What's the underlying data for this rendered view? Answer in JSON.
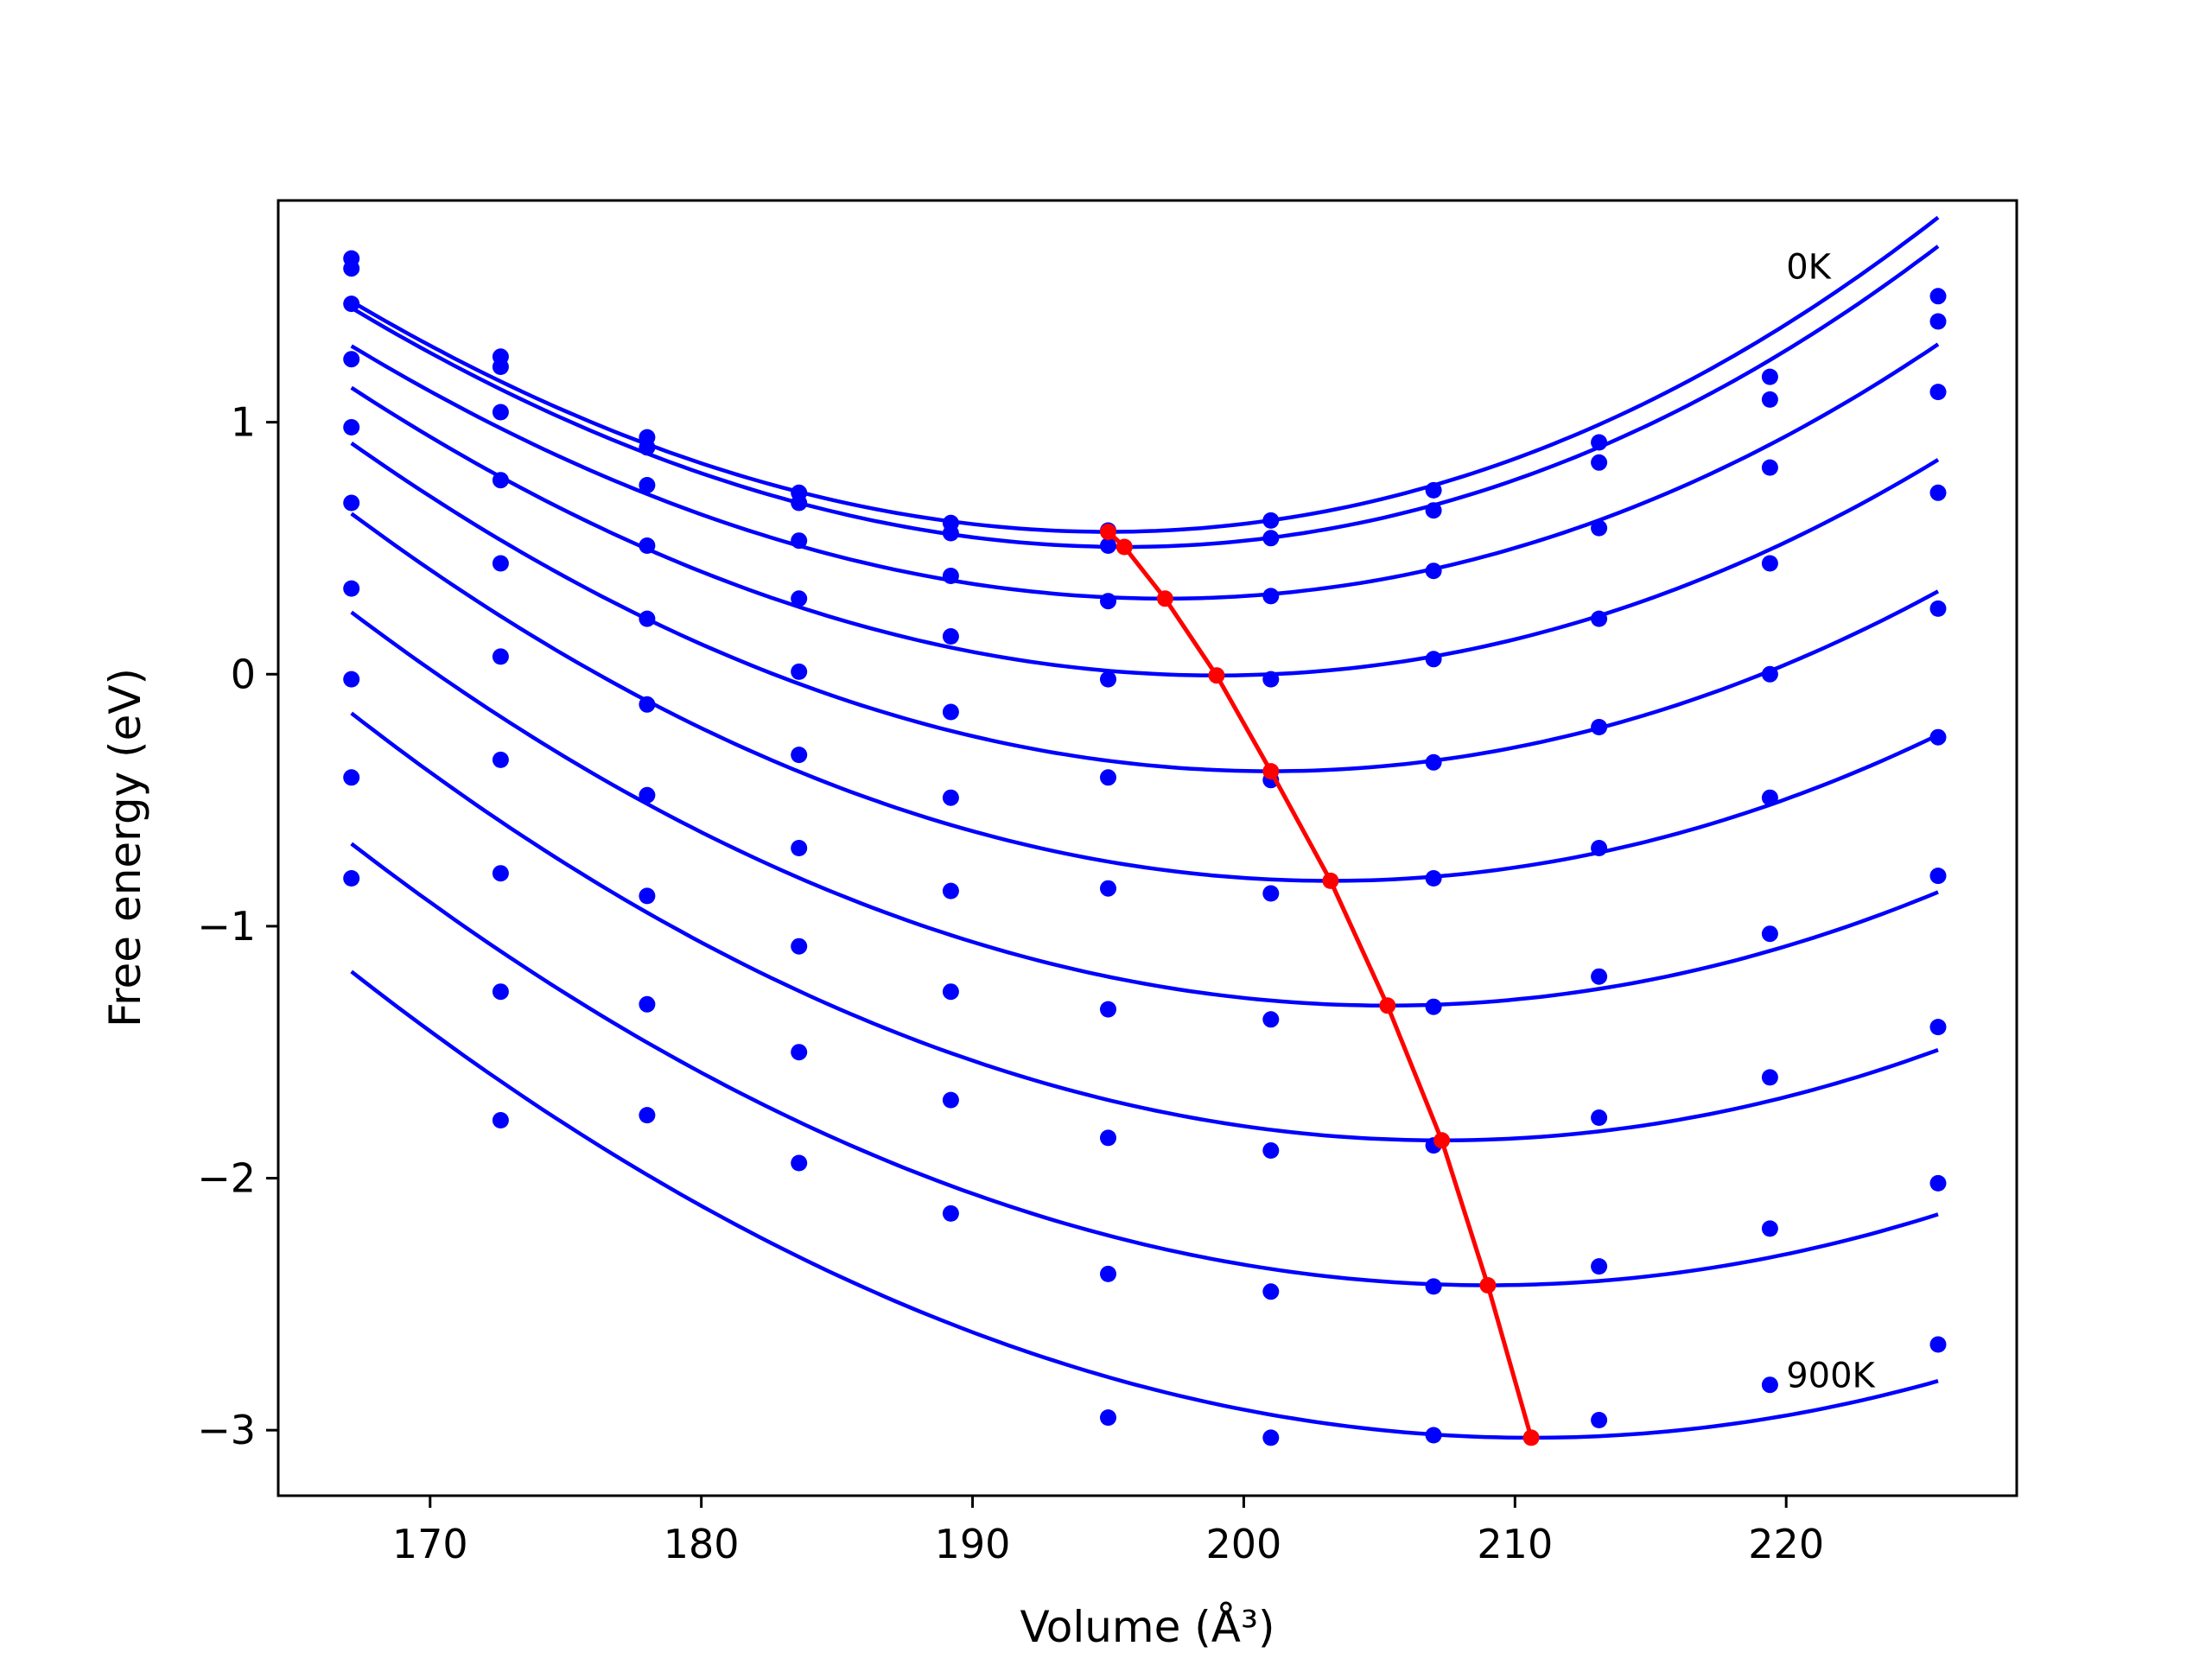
{
  "chart_data": {
    "type": "scatter",
    "xlabel": "Volume (Å³)",
    "ylabel": "Free energy (eV)",
    "xlim": [
      164.4,
      228.5
    ],
    "ylim": [
      -3.26,
      1.88
    ],
    "x_ticks": [
      {
        "value": 170,
        "label": "170"
      },
      {
        "value": 180,
        "label": "180"
      },
      {
        "value": 190,
        "label": "190"
      },
      {
        "value": 200,
        "label": "200"
      },
      {
        "value": 210,
        "label": "210"
      },
      {
        "value": 220,
        "label": "220"
      }
    ],
    "y_ticks": [
      {
        "value": 1,
        "label": "1"
      },
      {
        "value": 0,
        "label": "0"
      },
      {
        "value": -1,
        "label": "−1"
      },
      {
        "value": -2,
        "label": "−2"
      },
      {
        "value": -3,
        "label": "−3"
      }
    ],
    "annotations": [
      {
        "text": "0K",
        "x": 220.0,
        "y": 1.57
      },
      {
        "text": "900K",
        "x": 220.0,
        "y": -2.83
      }
    ],
    "volumes": [
      167.1,
      172.6,
      178.0,
      183.6,
      189.2,
      195.0,
      201.0,
      207.0,
      213.1,
      219.4,
      225.6
    ],
    "curve_color": "#0000ff",
    "point_color": "#0000ff",
    "min_line_color": "#ff0000",
    "series": [
      {
        "points_y": [
          1.65,
          1.26,
          0.94,
          0.72,
          0.6,
          0.57,
          0.61,
          0.73,
          0.92,
          1.18,
          1.5
        ],
        "fit": {
          "v0": 195.0,
          "e0": 0.565,
          "a": 0.00125,
          "b": 2.7e-06,
          "x_start": 167.1,
          "x_end": 225.6
        }
      },
      {
        "points_y": [
          1.61,
          1.22,
          0.9,
          0.68,
          0.56,
          0.51,
          0.54,
          0.65,
          0.84,
          1.09,
          1.4
        ],
        "fit": {
          "v0": 195.6,
          "e0": 0.505,
          "a": 0.001245,
          "b": 2.7e-06,
          "x_start": 167.1,
          "x_end": 225.6
        }
      },
      {
        "points_y": [
          1.47,
          1.04,
          0.75,
          0.53,
          0.39,
          0.29,
          0.31,
          0.41,
          0.58,
          0.82,
          1.12
        ],
        "fit": {
          "v0": 197.1,
          "e0": 0.3,
          "a": 0.00118,
          "b": 2.2e-06,
          "x_start": 167.1,
          "x_end": 225.6
        }
      },
      {
        "points_y": [
          1.25,
          0.77,
          0.51,
          0.3,
          0.15,
          -0.02,
          -0.02,
          0.06,
          0.22,
          0.44,
          0.72
        ],
        "fit": {
          "v0": 199.0,
          "e0": -0.005,
          "a": 0.00117,
          "b": 1.5e-06,
          "x_start": 167.1,
          "x_end": 225.6
        }
      },
      {
        "points_y": [
          0.98,
          0.44,
          0.22,
          0.01,
          -0.15,
          -0.41,
          -0.42,
          -0.35,
          -0.21,
          0.0,
          0.26
        ],
        "fit": {
          "v0": 201.0,
          "e0": -0.385,
          "a": 0.00116,
          "b": 8e-07,
          "x_start": 167.1,
          "x_end": 225.6
        }
      },
      {
        "points_y": [
          0.68,
          0.07,
          -0.12,
          -0.32,
          -0.49,
          -0.85,
          -0.87,
          -0.81,
          -0.69,
          -0.49,
          -0.25
        ],
        "fit": {
          "v0": 203.2,
          "e0": -0.82,
          "a": 0.00114,
          "b": 6e-07,
          "x_start": 167.1,
          "x_end": 225.6
        }
      },
      {
        "points_y": [
          0.34,
          -0.34,
          -0.48,
          -0.69,
          -0.86,
          -1.33,
          -1.37,
          -1.32,
          -1.2,
          -1.03,
          -0.8
        ],
        "fit": {
          "v0": 205.3,
          "e0": -1.315,
          "a": 0.001085,
          "b": 4e-07,
          "x_start": 167.1,
          "x_end": 225.6
        }
      },
      {
        "points_y": [
          -0.02,
          -0.79,
          -0.88,
          -1.08,
          -1.26,
          -1.84,
          -1.89,
          -1.87,
          -1.76,
          -1.6,
          -1.4
        ],
        "fit": {
          "v0": 207.3,
          "e0": -1.85,
          "a": 0.001065,
          "b": 4e-07,
          "x_start": 167.1,
          "x_end": 225.6
        }
      },
      {
        "points_y": [
          -0.41,
          -1.26,
          -1.31,
          -1.5,
          -1.69,
          -2.38,
          -2.45,
          -2.43,
          -2.35,
          -2.2,
          -2.02
        ],
        "fit": {
          "v0": 209.0,
          "e0": -2.425,
          "a": 0.001015,
          "b": 4e-07,
          "x_start": 167.1,
          "x_end": 225.6
        }
      },
      {
        "points_y": [
          -0.81,
          -1.77,
          -1.75,
          -1.94,
          -2.14,
          -2.95,
          -3.03,
          -3.02,
          -2.96,
          -2.82,
          -2.66
        ],
        "fit": {
          "v0": 210.6,
          "e0": -3.03,
          "a": 0.000995,
          "b": 4e-07,
          "x_start": 167.1,
          "x_end": 225.6
        }
      }
    ],
    "min_line": {
      "x": [
        195.0,
        195.6,
        197.1,
        199.0,
        201.0,
        203.2,
        205.3,
        207.3,
        209.0,
        210.6
      ],
      "y": [
        0.565,
        0.505,
        0.3,
        -0.005,
        -0.385,
        -0.82,
        -1.315,
        -1.85,
        -2.425,
        -3.03
      ]
    }
  }
}
